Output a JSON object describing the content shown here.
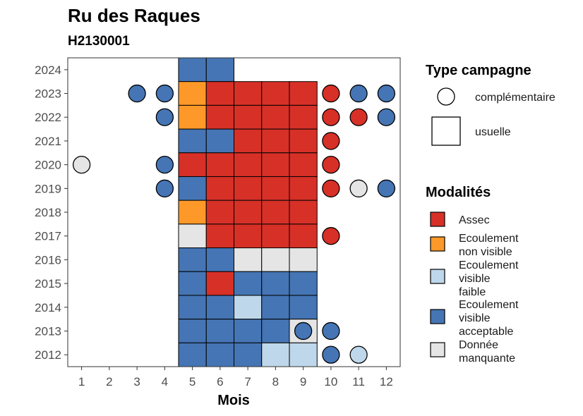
{
  "chart_data": {
    "type": "heatmap",
    "title": "Ru des Raques",
    "subtitle": "H2130001",
    "xlabel": "Mois",
    "ylabel": "",
    "x_ticks": [
      1,
      2,
      3,
      4,
      5,
      6,
      7,
      8,
      9,
      10,
      11,
      12
    ],
    "y_ticks": [
      2012,
      2013,
      2014,
      2015,
      2016,
      2017,
      2018,
      2019,
      2020,
      2021,
      2022,
      2023,
      2024
    ],
    "xlim": [
      0.5,
      12.5
    ],
    "ylim": [
      2011.5,
      2024.5
    ],
    "grid": false,
    "legend_position": "right",
    "legend_type": {
      "title": "Type campagne",
      "items": [
        {
          "key": "complementaire",
          "label": "complémentaire",
          "shape": "circle"
        },
        {
          "key": "usuelle",
          "label": "usuelle",
          "shape": "square"
        }
      ]
    },
    "legend_modalites": {
      "title": "Modalités",
      "items": [
        {
          "key": "assec",
          "lines": [
            "Assec"
          ],
          "color": "#d73027"
        },
        {
          "key": "nonvisible",
          "lines": [
            "Ecoulement",
            "non visible"
          ],
          "color": "#fe9929"
        },
        {
          "key": "faible",
          "lines": [
            "Ecoulement",
            "visible",
            "faible"
          ],
          "color": "#bfd7ea"
        },
        {
          "key": "acceptable",
          "lines": [
            "Ecoulement",
            "visible",
            "acceptable"
          ],
          "color": "#4575b4"
        },
        {
          "key": "manquante",
          "lines": [
            "Donnée",
            "manquante"
          ],
          "color": "#e5e5e5"
        }
      ]
    },
    "points": [
      {
        "year": 2024,
        "month": 5,
        "type": "usuelle",
        "modalite": "acceptable"
      },
      {
        "year": 2024,
        "month": 6,
        "type": "usuelle",
        "modalite": "acceptable"
      },
      {
        "year": 2023,
        "month": 3,
        "type": "complementaire",
        "modalite": "acceptable"
      },
      {
        "year": 2023,
        "month": 4,
        "type": "complementaire",
        "modalite": "acceptable"
      },
      {
        "year": 2023,
        "month": 5,
        "type": "usuelle",
        "modalite": "nonvisible"
      },
      {
        "year": 2023,
        "month": 6,
        "type": "usuelle",
        "modalite": "assec"
      },
      {
        "year": 2023,
        "month": 7,
        "type": "usuelle",
        "modalite": "assec"
      },
      {
        "year": 2023,
        "month": 8,
        "type": "usuelle",
        "modalite": "assec"
      },
      {
        "year": 2023,
        "month": 9,
        "type": "usuelle",
        "modalite": "assec"
      },
      {
        "year": 2023,
        "month": 10,
        "type": "complementaire",
        "modalite": "assec"
      },
      {
        "year": 2023,
        "month": 11,
        "type": "complementaire",
        "modalite": "acceptable"
      },
      {
        "year": 2023,
        "month": 12,
        "type": "complementaire",
        "modalite": "acceptable"
      },
      {
        "year": 2022,
        "month": 4,
        "type": "complementaire",
        "modalite": "acceptable"
      },
      {
        "year": 2022,
        "month": 5,
        "type": "usuelle",
        "modalite": "nonvisible"
      },
      {
        "year": 2022,
        "month": 6,
        "type": "usuelle",
        "modalite": "assec"
      },
      {
        "year": 2022,
        "month": 7,
        "type": "usuelle",
        "modalite": "assec"
      },
      {
        "year": 2022,
        "month": 8,
        "type": "usuelle",
        "modalite": "assec"
      },
      {
        "year": 2022,
        "month": 9,
        "type": "usuelle",
        "modalite": "assec"
      },
      {
        "year": 2022,
        "month": 10,
        "type": "complementaire",
        "modalite": "assec"
      },
      {
        "year": 2022,
        "month": 11,
        "type": "complementaire",
        "modalite": "assec"
      },
      {
        "year": 2022,
        "month": 12,
        "type": "complementaire",
        "modalite": "acceptable"
      },
      {
        "year": 2021,
        "month": 5,
        "type": "usuelle",
        "modalite": "acceptable"
      },
      {
        "year": 2021,
        "month": 6,
        "type": "usuelle",
        "modalite": "acceptable"
      },
      {
        "year": 2021,
        "month": 7,
        "type": "usuelle",
        "modalite": "assec"
      },
      {
        "year": 2021,
        "month": 8,
        "type": "usuelle",
        "modalite": "assec"
      },
      {
        "year": 2021,
        "month": 9,
        "type": "usuelle",
        "modalite": "assec"
      },
      {
        "year": 2021,
        "month": 10,
        "type": "complementaire",
        "modalite": "assec"
      },
      {
        "year": 2020,
        "month": 1,
        "type": "complementaire",
        "modalite": "manquante"
      },
      {
        "year": 2020,
        "month": 4,
        "type": "complementaire",
        "modalite": "acceptable"
      },
      {
        "year": 2020,
        "month": 5,
        "type": "usuelle",
        "modalite": "assec"
      },
      {
        "year": 2020,
        "month": 6,
        "type": "usuelle",
        "modalite": "assec"
      },
      {
        "year": 2020,
        "month": 7,
        "type": "usuelle",
        "modalite": "assec"
      },
      {
        "year": 2020,
        "month": 8,
        "type": "usuelle",
        "modalite": "assec"
      },
      {
        "year": 2020,
        "month": 9,
        "type": "usuelle",
        "modalite": "assec"
      },
      {
        "year": 2020,
        "month": 10,
        "type": "complementaire",
        "modalite": "assec"
      },
      {
        "year": 2019,
        "month": 4,
        "type": "complementaire",
        "modalite": "acceptable"
      },
      {
        "year": 2019,
        "month": 5,
        "type": "usuelle",
        "modalite": "acceptable"
      },
      {
        "year": 2019,
        "month": 6,
        "type": "usuelle",
        "modalite": "assec"
      },
      {
        "year": 2019,
        "month": 7,
        "type": "usuelle",
        "modalite": "assec"
      },
      {
        "year": 2019,
        "month": 8,
        "type": "usuelle",
        "modalite": "assec"
      },
      {
        "year": 2019,
        "month": 9,
        "type": "usuelle",
        "modalite": "assec"
      },
      {
        "year": 2019,
        "month": 10,
        "type": "complementaire",
        "modalite": "assec"
      },
      {
        "year": 2019,
        "month": 11,
        "type": "complementaire",
        "modalite": "manquante"
      },
      {
        "year": 2019,
        "month": 12,
        "type": "complementaire",
        "modalite": "acceptable"
      },
      {
        "year": 2018,
        "month": 5,
        "type": "usuelle",
        "modalite": "nonvisible"
      },
      {
        "year": 2018,
        "month": 6,
        "type": "usuelle",
        "modalite": "assec"
      },
      {
        "year": 2018,
        "month": 7,
        "type": "usuelle",
        "modalite": "assec"
      },
      {
        "year": 2018,
        "month": 8,
        "type": "usuelle",
        "modalite": "assec"
      },
      {
        "year": 2018,
        "month": 9,
        "type": "usuelle",
        "modalite": "assec"
      },
      {
        "year": 2017,
        "month": 5,
        "type": "usuelle",
        "modalite": "manquante"
      },
      {
        "year": 2017,
        "month": 6,
        "type": "usuelle",
        "modalite": "assec"
      },
      {
        "year": 2017,
        "month": 7,
        "type": "usuelle",
        "modalite": "assec"
      },
      {
        "year": 2017,
        "month": 8,
        "type": "usuelle",
        "modalite": "assec"
      },
      {
        "year": 2017,
        "month": 9,
        "type": "usuelle",
        "modalite": "assec"
      },
      {
        "year": 2017,
        "month": 10,
        "type": "complementaire",
        "modalite": "assec"
      },
      {
        "year": 2016,
        "month": 5,
        "type": "usuelle",
        "modalite": "acceptable"
      },
      {
        "year": 2016,
        "month": 6,
        "type": "usuelle",
        "modalite": "acceptable"
      },
      {
        "year": 2016,
        "month": 7,
        "type": "usuelle",
        "modalite": "manquante"
      },
      {
        "year": 2016,
        "month": 8,
        "type": "usuelle",
        "modalite": "manquante"
      },
      {
        "year": 2016,
        "month": 9,
        "type": "usuelle",
        "modalite": "manquante"
      },
      {
        "year": 2015,
        "month": 5,
        "type": "usuelle",
        "modalite": "acceptable"
      },
      {
        "year": 2015,
        "month": 6,
        "type": "usuelle",
        "modalite": "assec"
      },
      {
        "year": 2015,
        "month": 7,
        "type": "usuelle",
        "modalite": "acceptable"
      },
      {
        "year": 2015,
        "month": 8,
        "type": "usuelle",
        "modalite": "acceptable"
      },
      {
        "year": 2015,
        "month": 9,
        "type": "usuelle",
        "modalite": "acceptable"
      },
      {
        "year": 2014,
        "month": 5,
        "type": "usuelle",
        "modalite": "acceptable"
      },
      {
        "year": 2014,
        "month": 6,
        "type": "usuelle",
        "modalite": "acceptable"
      },
      {
        "year": 2014,
        "month": 7,
        "type": "usuelle",
        "modalite": "faible"
      },
      {
        "year": 2014,
        "month": 8,
        "type": "usuelle",
        "modalite": "acceptable"
      },
      {
        "year": 2014,
        "month": 9,
        "type": "usuelle",
        "modalite": "acceptable"
      },
      {
        "year": 2013,
        "month": 5,
        "type": "usuelle",
        "modalite": "acceptable"
      },
      {
        "year": 2013,
        "month": 6,
        "type": "usuelle",
        "modalite": "acceptable"
      },
      {
        "year": 2013,
        "month": 7,
        "type": "usuelle",
        "modalite": "acceptable"
      },
      {
        "year": 2013,
        "month": 8,
        "type": "usuelle",
        "modalite": "acceptable"
      },
      {
        "year": 2013,
        "month": 9,
        "type": "usuelle",
        "modalite": "manquante"
      },
      {
        "year": 2013,
        "month": 9,
        "type": "complementaire",
        "modalite": "acceptable"
      },
      {
        "year": 2013,
        "month": 10,
        "type": "complementaire",
        "modalite": "acceptable"
      },
      {
        "year": 2012,
        "month": 5,
        "type": "usuelle",
        "modalite": "acceptable"
      },
      {
        "year": 2012,
        "month": 6,
        "type": "usuelle",
        "modalite": "acceptable"
      },
      {
        "year": 2012,
        "month": 7,
        "type": "usuelle",
        "modalite": "acceptable"
      },
      {
        "year": 2012,
        "month": 8,
        "type": "usuelle",
        "modalite": "faible"
      },
      {
        "year": 2012,
        "month": 9,
        "type": "usuelle",
        "modalite": "faible"
      },
      {
        "year": 2012,
        "month": 10,
        "type": "complementaire",
        "modalite": "acceptable"
      },
      {
        "year": 2012,
        "month": 11,
        "type": "complementaire",
        "modalite": "faible"
      }
    ]
  }
}
